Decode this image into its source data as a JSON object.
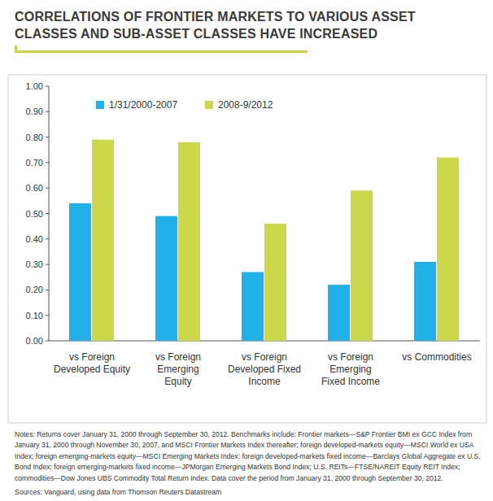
{
  "chart_data": {
    "type": "bar",
    "title": "CORRELATIONS OF FRONTIER MARKETS TO VARIOUS ASSET CLASSES AND SUB-ASSET CLASSES HAVE INCREASED",
    "categories": [
      "vs Foreign\nDeveloped Equity",
      "vs Foreign\nEmerging\nEquity",
      "vs Foreign\nDeveloped Fixed\nIncome",
      "vs Foreign\nEmerging\nFixed Income",
      "vs Commodities"
    ],
    "series": [
      {
        "name": "1/31/2000-2007",
        "color": "#1fb1e8",
        "values": [
          0.54,
          0.49,
          0.27,
          0.22,
          0.31
        ]
      },
      {
        "name": "2008-9/2012",
        "color": "#cbd84a",
        "values": [
          0.79,
          0.78,
          0.46,
          0.59,
          0.72
        ]
      }
    ],
    "ylim": [
      0,
      1
    ],
    "yticks": [
      {
        "value": 0,
        "label": "0.00"
      },
      {
        "value": 0.1,
        "label": "0.10"
      },
      {
        "value": 0.2,
        "label": "0.20"
      },
      {
        "value": 0.3,
        "label": "0.30"
      },
      {
        "value": 0.4,
        "label": "0.40"
      },
      {
        "value": 0.5,
        "label": "0.50"
      },
      {
        "value": 0.6,
        "label": "0.60"
      },
      {
        "value": 0.7,
        "label": "0.70"
      },
      {
        "value": 0.8,
        "label": "0.80"
      },
      {
        "value": 0.9,
        "label": "0.90"
      },
      {
        "value": 1,
        "label": "1.00"
      }
    ],
    "grid": false,
    "legend": "top-left",
    "notes": "Notes: Returns cover January 31, 2000 through September 30, 2012. Benchmarks include: Frontier markets—S&P Frontier BMI ex GCC Index from January 31, 2000 through November 30, 2007, and MSCI Frontier Markets Index thereafter; foreign developed-markets equity—MSCI World ex USA Index; foreign emerging-markets equity—MSCI Emerging Markets Index; foreign developed-markets fixed income—Barclays Global Aggregate ex U.S. Bond Index; foreign emerging-markets fixed income—JPMorgan Emerging Markets Bond Index; U.S. REITs—FTSE/NAREIT Equity REIT Index; commodities—Dow Jones UBS Commodity Total Return Index. Data cover the period from January 31, 2000 through September 30, 2012.",
    "source": "Sources: Vanguard, using data from Thomson Reuters Datastream"
  }
}
